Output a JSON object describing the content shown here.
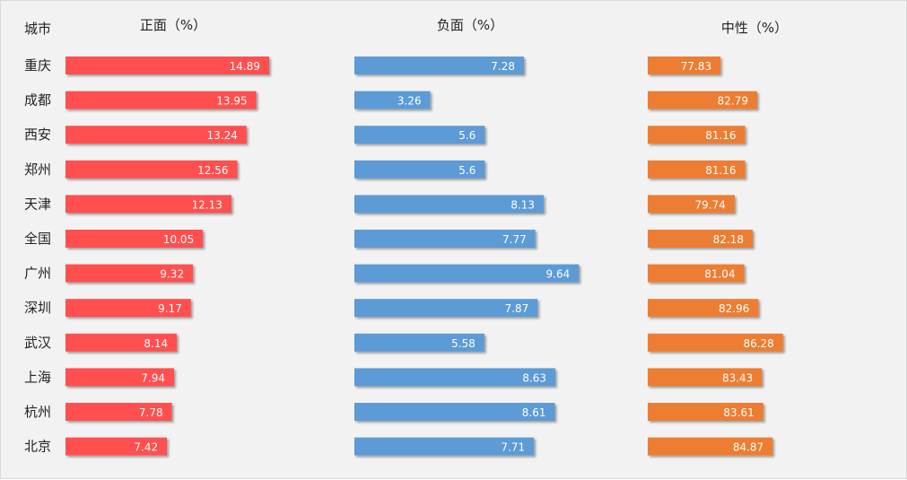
{
  "chart_data": {
    "type": "bar",
    "orientation": "horizontal",
    "category_header": "城市",
    "categories": [
      "重庆",
      "成都",
      "西安",
      "郑州",
      "天津",
      "全国",
      "广州",
      "深圳",
      "武汉",
      "上海",
      "杭州",
      "北京"
    ],
    "series": [
      {
        "name": "正面（%）",
        "color": "#ff5050",
        "values": [
          14.89,
          13.95,
          13.24,
          12.56,
          12.13,
          10.05,
          9.32,
          9.17,
          8.14,
          7.94,
          7.78,
          7.42
        ]
      },
      {
        "name": "负面（%）",
        "color": "#5b9bd5",
        "values": [
          7.28,
          3.26,
          5.6,
          5.6,
          8.13,
          7.77,
          9.64,
          7.87,
          5.58,
          8.63,
          8.61,
          7.71
        ]
      },
      {
        "name": "中性（%）",
        "color": "#ed7d31",
        "values": [
          77.83,
          82.79,
          81.16,
          81.16,
          79.74,
          82.18,
          81.04,
          82.96,
          86.28,
          83.43,
          83.61,
          84.87
        ]
      }
    ]
  }
}
